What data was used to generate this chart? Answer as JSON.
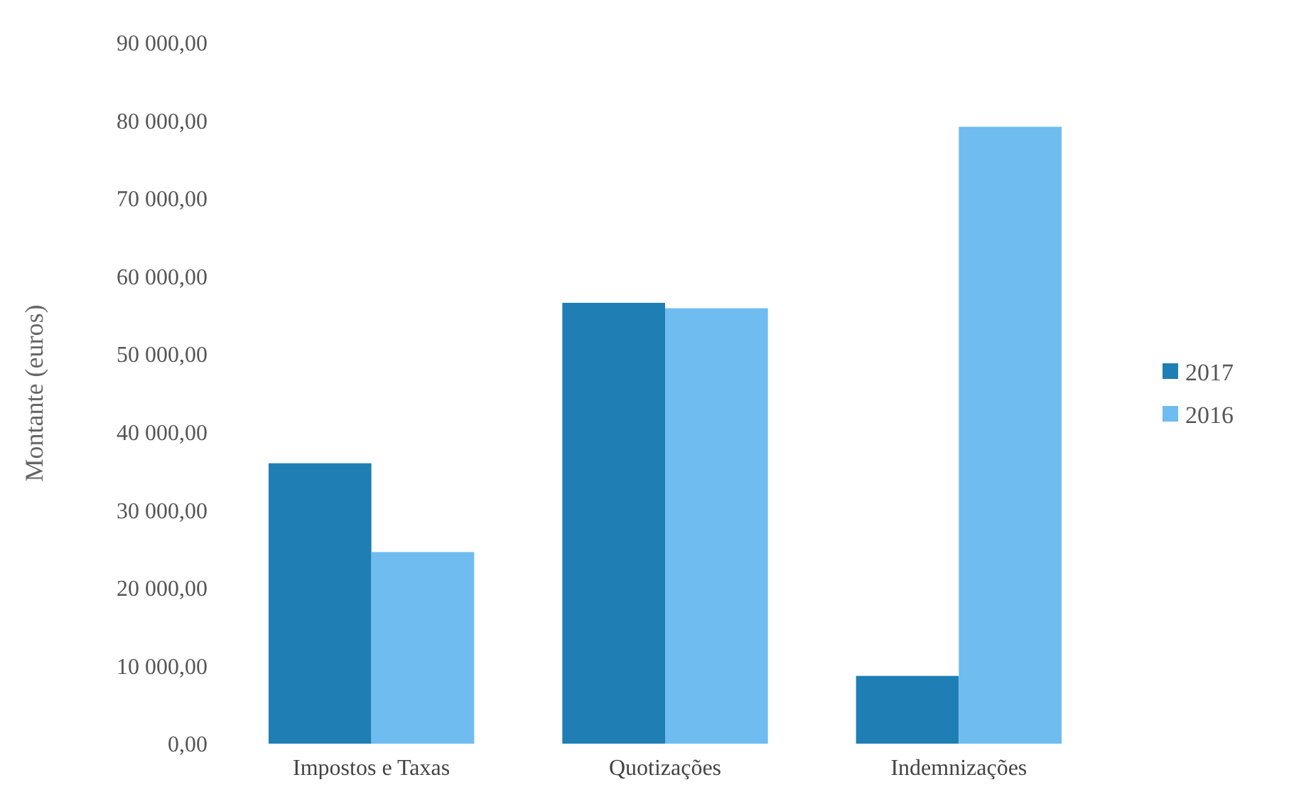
{
  "chart_data": {
    "type": "bar",
    "ylabel": "Montante (euros)",
    "categories": [
      "Impostos e Taxas",
      "Quotizações",
      "Indemnizações"
    ],
    "series": [
      {
        "name": "2017",
        "color": "#1f7fb4",
        "values": [
          36000,
          56600,
          8700
        ]
      },
      {
        "name": "2016",
        "color": "#6ebcf0",
        "values": [
          24600,
          55900,
          79200
        ]
      }
    ],
    "ylim": [
      0,
      90000
    ],
    "yticks": [
      {
        "value": 0,
        "label": "0,00"
      },
      {
        "value": 10000,
        "label": "10 000,00"
      },
      {
        "value": 20000,
        "label": "20 000,00"
      },
      {
        "value": 30000,
        "label": "30 000,00"
      },
      {
        "value": 40000,
        "label": "40 000,00"
      },
      {
        "value": 50000,
        "label": "50 000,00"
      },
      {
        "value": 60000,
        "label": "60 000,00"
      },
      {
        "value": 70000,
        "label": "70 000,00"
      },
      {
        "value": 80000,
        "label": "80 000,00"
      },
      {
        "value": 90000,
        "label": "90 000,00"
      }
    ],
    "grid": false,
    "legend": "right"
  }
}
